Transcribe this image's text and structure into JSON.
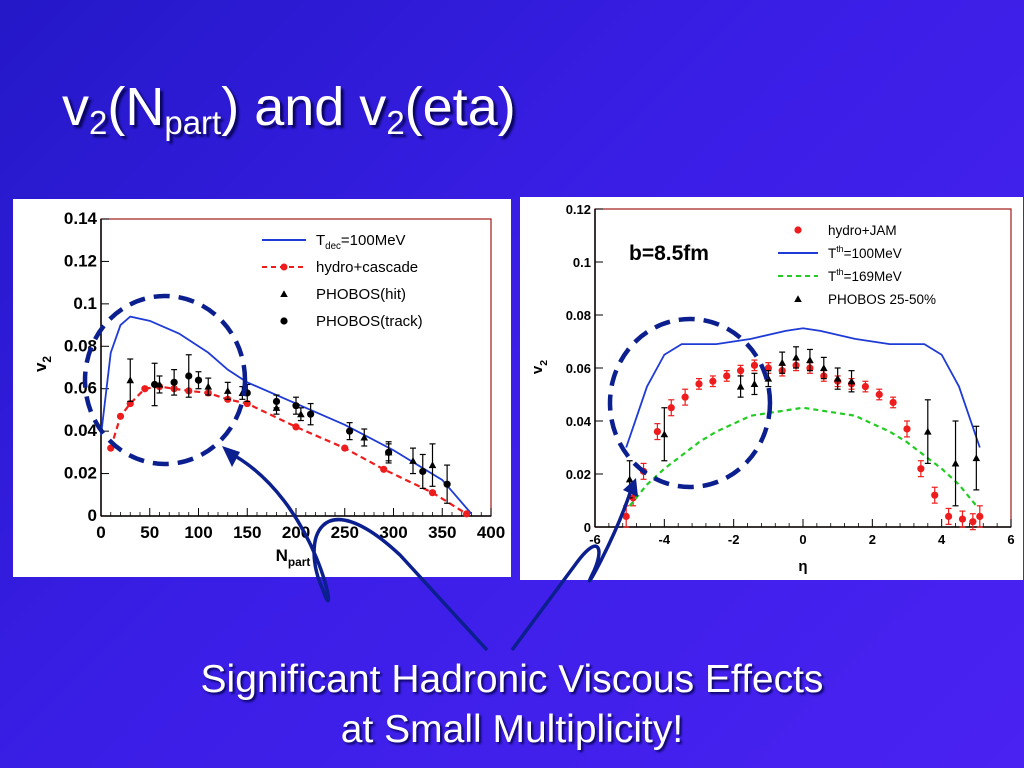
{
  "title": {
    "base": "v",
    "sub1": "2",
    "mid1": "(N",
    "sub2": "part",
    "mid2": ") and v",
    "sub3": "2",
    "end": "(eta)"
  },
  "caption": {
    "line1": "Significant Hadronic Viscous Effects",
    "line2": "at Small Multiplicity!"
  },
  "colors": {
    "background": "#3a1ee6",
    "hydro": "#1f3bd6",
    "cascade": "#ee1c1c",
    "t169": "#22cc22",
    "data": "#000000",
    "frame": "#a01818",
    "arrow": "#0b1f8e",
    "circle": "#0b1f8e"
  },
  "chart_data": [
    {
      "type": "line",
      "xlabel": "N",
      "xlabel_sub": "part",
      "ylabel": "v",
      "ylabel_sub": "2",
      "xlim": [
        0,
        400
      ],
      "ylim": [
        0,
        0.14
      ],
      "xticks": [
        0,
        50,
        100,
        150,
        200,
        250,
        300,
        350,
        400
      ],
      "yticks": [
        0,
        0.02,
        0.04,
        0.06,
        0.08,
        0.1,
        0.12,
        0.14
      ],
      "xtick_labels": [
        "0",
        "50",
        "100",
        "150",
        "200",
        "250",
        "300",
        "350",
        "400"
      ],
      "ytick_labels": [
        "0",
        "0.02",
        "0.04",
        "0.06",
        "0.08",
        "0.1",
        "0.12",
        "0.14"
      ],
      "legend_position": "top-right",
      "series": [
        {
          "name": "T",
          "name_sub": "dec",
          "name_rest": "=100MeV",
          "style": "solid",
          "color": "#1f3bd6",
          "x": [
            0,
            10,
            20,
            30,
            50,
            80,
            110,
            130,
            150,
            200,
            250,
            300,
            350,
            380
          ],
          "y": [
            0.038,
            0.077,
            0.09,
            0.094,
            0.092,
            0.086,
            0.077,
            0.069,
            0.063,
            0.053,
            0.043,
            0.031,
            0.017,
            0.001
          ]
        },
        {
          "name": "hydro+cascade",
          "style": "dashed-markers",
          "color": "#ee1c1c",
          "x": [
            10,
            20,
            30,
            45,
            60,
            75,
            90,
            110,
            130,
            150,
            200,
            250,
            290,
            340,
            375
          ],
          "y": [
            0.032,
            0.047,
            0.053,
            0.06,
            0.061,
            0.06,
            0.059,
            0.058,
            0.055,
            0.053,
            0.042,
            0.032,
            0.022,
            0.011,
            0.001
          ]
        },
        {
          "name": "PHOBOS(hit)",
          "style": "triangles",
          "color": "#000000",
          "x": [
            30,
            60,
            110,
            130,
            145,
            180,
            205,
            270,
            295,
            320,
            340
          ],
          "y": [
            0.064,
            0.062,
            0.061,
            0.059,
            0.058,
            0.051,
            0.048,
            0.037,
            0.03,
            0.026,
            0.024
          ],
          "err": [
            0.01,
            0.004,
            0.004,
            0.004,
            0.003,
            0.003,
            0.003,
            0.004,
            0.005,
            0.006,
            0.01
          ]
        },
        {
          "name": "PHOBOS(track)",
          "style": "circles",
          "color": "#000000",
          "x": [
            55,
            75,
            90,
            100,
            150,
            180,
            200,
            215,
            255,
            295,
            330,
            355
          ],
          "y": [
            0.062,
            0.063,
            0.066,
            0.064,
            0.058,
            0.054,
            0.052,
            0.048,
            0.04,
            0.03,
            0.021,
            0.015
          ],
          "err": [
            0.01,
            0.006,
            0.01,
            0.004,
            0.004,
            0.003,
            0.004,
            0.005,
            0.004,
            0.004,
            0.008,
            0.009
          ]
        }
      ]
    },
    {
      "type": "line",
      "annotation": "b=8.5fm",
      "xlabel": "η",
      "ylabel": "v",
      "ylabel_sub": "2",
      "xlim": [
        -6,
        6
      ],
      "ylim": [
        0,
        0.12
      ],
      "xticks": [
        -6,
        -4,
        -2,
        0,
        2,
        4,
        6
      ],
      "yticks": [
        0,
        0.02,
        0.04,
        0.06,
        0.08,
        0.1,
        0.12
      ],
      "xtick_labels": [
        "-6",
        "-4",
        "-2",
        "0",
        "2",
        "4",
        "6"
      ],
      "ytick_labels": [
        "0",
        "0.02",
        "0.04",
        "0.06",
        "0.08",
        "0.1",
        "0.12"
      ],
      "legend_position": "top-right",
      "series": [
        {
          "name": "hydro+JAM",
          "style": "circles-error",
          "color": "#ee1c1c",
          "x": [
            -5.1,
            -4.9,
            -4.6,
            -4.2,
            -3.8,
            -3.4,
            -3.0,
            -2.6,
            -2.2,
            -1.8,
            -1.4,
            -1.0,
            -0.6,
            -0.2,
            0.2,
            0.6,
            1.0,
            1.4,
            1.8,
            2.2,
            2.6,
            3.0,
            3.4,
            3.8,
            4.2,
            4.6,
            4.9,
            5.1
          ],
          "y": [
            0.004,
            0.011,
            0.021,
            0.036,
            0.045,
            0.049,
            0.054,
            0.055,
            0.057,
            0.059,
            0.061,
            0.06,
            0.059,
            0.061,
            0.06,
            0.057,
            0.055,
            0.054,
            0.053,
            0.05,
            0.047,
            0.037,
            0.022,
            0.012,
            0.004,
            0.003,
            0.002,
            0.004
          ],
          "err": [
            0.004,
            0.003,
            0.003,
            0.003,
            0.003,
            0.003,
            0.002,
            0.002,
            0.002,
            0.002,
            0.002,
            0.002,
            0.002,
            0.002,
            0.002,
            0.002,
            0.002,
            0.002,
            0.002,
            0.002,
            0.002,
            0.003,
            0.003,
            0.003,
            0.003,
            0.003,
            0.003,
            0.004
          ]
        },
        {
          "name": "T",
          "name_sup": "th",
          "name_rest": "=100MeV",
          "style": "solid",
          "color": "#1f3bd6",
          "x": [
            -5.1,
            -4.5,
            -4.0,
            -3.5,
            -2.5,
            -1.5,
            -0.5,
            0,
            0.5,
            1.5,
            2.5,
            3.5,
            4.0,
            4.5,
            5.1
          ],
          "y": [
            0.03,
            0.053,
            0.065,
            0.069,
            0.069,
            0.071,
            0.074,
            0.075,
            0.074,
            0.071,
            0.069,
            0.069,
            0.065,
            0.053,
            0.03
          ]
        },
        {
          "name": "T",
          "name_sup": "th",
          "name_rest": "=169MeV",
          "style": "dashed",
          "color": "#22cc22",
          "x": [
            -5.0,
            -4.5,
            -4.0,
            -3.5,
            -3.0,
            -2.5,
            -2.0,
            -1.5,
            -1.0,
            -0.5,
            0,
            0.5,
            1.0,
            1.5,
            2.0,
            2.5,
            3.0,
            3.5,
            4.0,
            4.5,
            5.0
          ],
          "y": [
            0.008,
            0.016,
            0.022,
            0.027,
            0.032,
            0.036,
            0.039,
            0.042,
            0.043,
            0.044,
            0.045,
            0.044,
            0.043,
            0.042,
            0.039,
            0.036,
            0.032,
            0.027,
            0.022,
            0.016,
            0.008
          ]
        },
        {
          "name": "PHOBOS 25-50%",
          "style": "triangles",
          "color": "#000000",
          "x": [
            -5.0,
            -4.0,
            -1.8,
            -1.4,
            -1.0,
            -0.6,
            -0.2,
            0.2,
            0.6,
            1.0,
            1.4,
            3.6,
            4.4,
            5.0
          ],
          "y": [
            0.018,
            0.035,
            0.053,
            0.054,
            0.056,
            0.062,
            0.064,
            0.063,
            0.06,
            0.056,
            0.055,
            0.036,
            0.024,
            0.026
          ],
          "err": [
            0.007,
            0.01,
            0.004,
            0.004,
            0.003,
            0.004,
            0.004,
            0.004,
            0.004,
            0.004,
            0.004,
            0.012,
            0.016,
            0.012
          ]
        }
      ]
    }
  ]
}
